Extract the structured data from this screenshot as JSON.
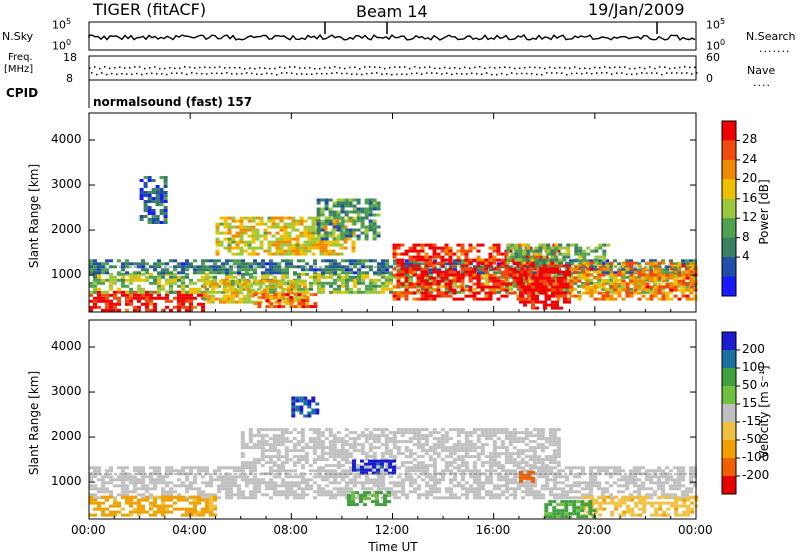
{
  "header": {
    "radar": "TIGER (fitACF)",
    "beam": "Beam 14",
    "date": "19/Jan/2009"
  },
  "top_panels": {
    "nsky_label": "N.Sky",
    "nsky_ticks": [
      "10^5",
      "10^0"
    ],
    "nsearch_label": "N.Search",
    "nsearch_ticks": [
      "10^5",
      "10^0"
    ],
    "freq_label": [
      "Freq.",
      "[MHz]"
    ],
    "freq_ticks": [
      "18",
      "8"
    ],
    "nave_label": "Nave",
    "nave_ticks": [
      "60",
      "0"
    ],
    "cpid_label": "CPID",
    "cpid_value": "normalsound (fast) 157"
  },
  "x_axis": {
    "label": "Time UT",
    "ticks": [
      "00:00",
      "04:00",
      "08:00",
      "12:00",
      "16:00",
      "20:00",
      "00:00"
    ]
  },
  "colors": {
    "power": [
      "#1a1aff",
      "#1f4fa8",
      "#3a7f62",
      "#4fa04f",
      "#9ac83a",
      "#f0c000",
      "#f08a00",
      "#f04a10",
      "#f00000"
    ],
    "velocity": [
      "#e80000",
      "#f06000",
      "#f0a000",
      "#f0c040",
      "#c0c0c0",
      "#70c040",
      "#40a040",
      "#1c70a0",
      "#1a1ad0"
    ],
    "ground_gray": "#c0c0c0"
  },
  "chart_data": [
    {
      "type": "heatmap",
      "title": "",
      "ylabel": "Slant Range [km]",
      "yticks": [
        1000,
        2000,
        3000,
        4000
      ],
      "ylim": [
        180,
        4600
      ],
      "xlim": [
        0,
        24
      ],
      "colorbar": {
        "label": "Power [dB]",
        "ticks": [
          "4",
          "8",
          "12",
          "16",
          "20",
          "24",
          "28"
        ],
        "range": [
          0,
          30
        ]
      },
      "regions": [
        {
          "t0": 0.0,
          "t1": 4.5,
          "r0": 250,
          "r1": 650,
          "value": 28
        },
        {
          "t0": 0.0,
          "t1": 24.0,
          "r0": 650,
          "r1": 1050,
          "value": 14
        },
        {
          "t0": 0.0,
          "t1": 24.0,
          "r0": 1050,
          "r1": 1350,
          "value": 8
        },
        {
          "t0": 4.5,
          "t1": 8.5,
          "r0": 400,
          "r1": 900,
          "value": 18
        },
        {
          "t0": 6.5,
          "t1": 9.0,
          "r0": 300,
          "r1": 600,
          "value": 24
        },
        {
          "t0": 5.0,
          "t1": 10.5,
          "r0": 1500,
          "r1": 2300,
          "value": 18
        },
        {
          "t0": 9.0,
          "t1": 11.5,
          "r0": 1800,
          "r1": 2700,
          "value": 10
        },
        {
          "t0": 12.0,
          "t1": 18.5,
          "r0": 500,
          "r1": 1700,
          "value": 27
        },
        {
          "t0": 17.0,
          "t1": 19.0,
          "r0": 250,
          "r1": 1300,
          "value": 29
        },
        {
          "t0": 19.0,
          "t1": 24.0,
          "r0": 500,
          "r1": 1300,
          "value": 22
        },
        {
          "t0": 2.0,
          "t1": 3.0,
          "r0": 2200,
          "r1": 3200,
          "value": 6
        },
        {
          "t0": 16.5,
          "t1": 20.5,
          "r0": 1300,
          "r1": 1700,
          "value": 12
        }
      ]
    },
    {
      "type": "heatmap",
      "title": "",
      "ylabel": "Slant Range [km]",
      "yticks": [
        1000,
        2000,
        3000,
        4000
      ],
      "ylim": [
        180,
        4600
      ],
      "xlim": [
        0,
        24
      ],
      "colorbar": {
        "label": "Velocity [m s⁻¹]",
        "ticks": [
          "200",
          "100",
          "50",
          "15",
          "-15",
          "-50",
          "-100",
          "-200"
        ],
        "range": [
          -250,
          250
        ]
      },
      "regions": [
        {
          "t0": 0.0,
          "t1": 24.0,
          "r0": 650,
          "r1": 1350,
          "value": 0
        },
        {
          "t0": 6.0,
          "t1": 18.5,
          "r0": 1350,
          "r1": 2200,
          "value": 0
        },
        {
          "t0": 0.0,
          "t1": 5.0,
          "r0": 250,
          "r1": 700,
          "value": -60
        },
        {
          "t0": 19.5,
          "t1": 24.0,
          "r0": 250,
          "r1": 700,
          "value": -40
        },
        {
          "t0": 10.4,
          "t1": 12.0,
          "r0": 1200,
          "r1": 1500,
          "value": 210
        },
        {
          "t0": 10.2,
          "t1": 11.8,
          "r0": 500,
          "r1": 800,
          "value": 60
        },
        {
          "t0": 8.0,
          "t1": 9.0,
          "r0": 2500,
          "r1": 2900,
          "value": 200
        },
        {
          "t0": 17.0,
          "t1": 17.6,
          "r0": 1050,
          "r1": 1250,
          "value": -120
        },
        {
          "t0": 18.0,
          "t1": 20.0,
          "r0": 250,
          "r1": 600,
          "value": 60
        }
      ]
    }
  ]
}
